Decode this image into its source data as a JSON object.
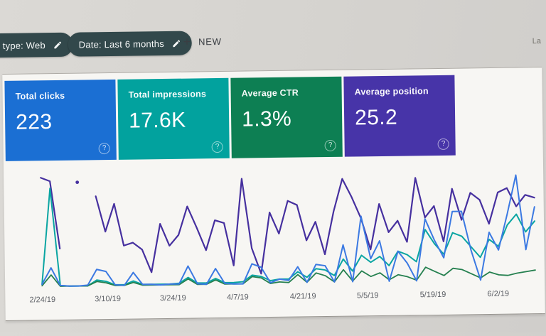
{
  "header": {
    "filter_chips": [
      {
        "id": "search-type",
        "label": "type: Web"
      },
      {
        "id": "date-range",
        "label": "Date: Last 6 months"
      }
    ],
    "new_button": {
      "plus": "+",
      "label": "NEW"
    },
    "right_partial_text": "La"
  },
  "metric_cards": [
    {
      "id": "total-clicks",
      "label": "Total clicks",
      "value": "223",
      "color": "#1b6fd3",
      "help": "?"
    },
    {
      "id": "total-impressions",
      "label": "Total impressions",
      "value": "17.6K",
      "color": "#02a29e",
      "help": "?"
    },
    {
      "id": "average-ctr",
      "label": "Average CTR",
      "value": "1.3%",
      "color": "#0d7f53",
      "help": "?"
    },
    {
      "id": "average-position",
      "label": "Average position",
      "value": "25.2",
      "color": "#4734a8",
      "help": "?"
    }
  ],
  "chart_data": {
    "type": "line",
    "x_tick_labels": [
      "2/24/19",
      "3/10/19",
      "3/24/19",
      "4/7/19",
      "4/21/19",
      "5/5/19",
      "5/19/19",
      "6/2/19"
    ],
    "x_tick_positions_pct": [
      0.9,
      13.9,
      26.9,
      39.8,
      52.8,
      65.7,
      78.7,
      91.7
    ],
    "x_range_days": 108,
    "point_interval_days": 2,
    "y_axis": "none visible",
    "y_units": "relative height 0-160 (chart shows no y-axis labels; values estimated from pixels)",
    "legend": "none (series colors match metric cards)",
    "grid": false,
    "series": [
      {
        "key": "position",
        "name": "Average position",
        "color": "#46309f",
        "width": 2.2,
        "values": [
          155,
          150,
          55,
          null,
          148,
          null,
          128,
          78,
          117,
          58,
          62,
          52,
          20,
          88,
          57,
          72,
          112,
          82,
          50,
          92,
          88,
          28,
          150,
          52,
          16,
          102,
          72,
          118,
          112,
          62,
          88,
          42,
          102,
          148,
          122,
          92,
          48,
          112,
          72,
          88,
          58,
          148,
          92,
          108,
          58,
          132,
          88,
          126,
          116,
          82,
          126,
          132,
          106,
          122,
          118
        ]
      },
      {
        "key": "impressions",
        "name": "Total impressions",
        "color": "#0aa5a2",
        "width": 2,
        "values": [
          5,
          140,
          3,
          2,
          2,
          2,
          10,
          8,
          3,
          3,
          8,
          3,
          3,
          3,
          3,
          4,
          12,
          4,
          4,
          10,
          4,
          4,
          5,
          14,
          12,
          6,
          8,
          8,
          18,
          10,
          22,
          20,
          12,
          35,
          18,
          40,
          30,
          38,
          25,
          45,
          40,
          30,
          75,
          55,
          40,
          70,
          65,
          50,
          35,
          60,
          50,
          80,
          95,
          70,
          85
        ]
      },
      {
        "key": "ctr",
        "name": "Average CTR",
        "color": "#25804f",
        "width": 1.8,
        "values": [
          3,
          18,
          2,
          2,
          2,
          2,
          8,
          6,
          2,
          2,
          6,
          2,
          2,
          2,
          2,
          2,
          10,
          2,
          2,
          8,
          2,
          2,
          2,
          12,
          10,
          2,
          4,
          3,
          14,
          3,
          16,
          12,
          3,
          20,
          4,
          18,
          10,
          15,
          5,
          12,
          9,
          4,
          22,
          16,
          10,
          20,
          18,
          12,
          6,
          14,
          10,
          9,
          12,
          14,
          16
        ]
      },
      {
        "key": "clicks",
        "name": "Total clicks",
        "color": "#3b79e2",
        "width": 2,
        "values": [
          5,
          28,
          3,
          2,
          2,
          3,
          25,
          22,
          3,
          2,
          20,
          3,
          3,
          2,
          3,
          3,
          28,
          3,
          2,
          24,
          3,
          2,
          2,
          30,
          25,
          3,
          8,
          6,
          25,
          3,
          28,
          26,
          3,
          55,
          3,
          95,
          35,
          60,
          3,
          45,
          28,
          3,
          90,
          60,
          35,
          100,
          100,
          45,
          3,
          70,
          45,
          95,
          150,
          45,
          105
        ]
      }
    ]
  }
}
